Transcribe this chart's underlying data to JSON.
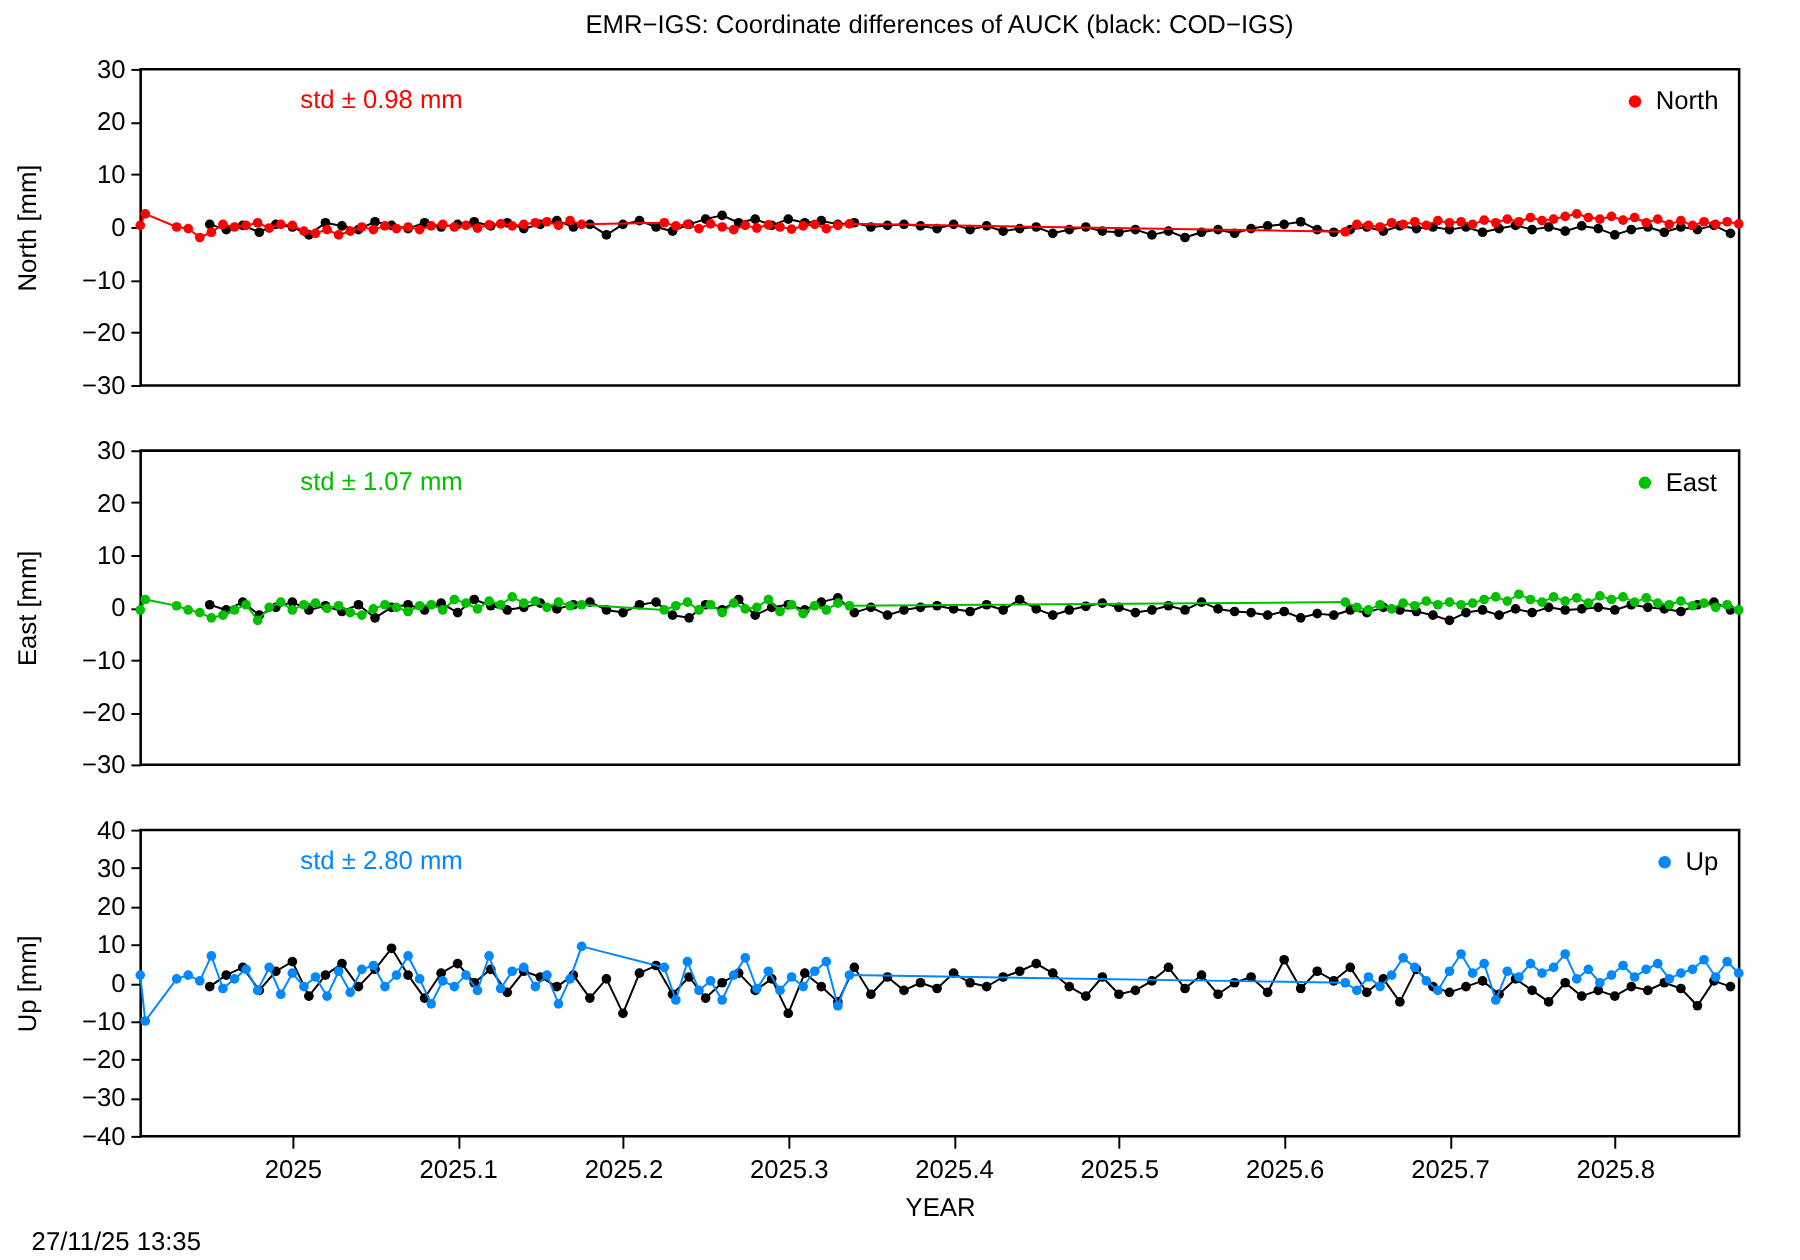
{
  "chart_data": [
    {
      "type": "line",
      "title": "EMR−IGS: Coordinate differences of AUCK (black: COD−IGS)",
      "ylabel": "North [mm]",
      "xlim": [
        2024.908,
        2025.875
      ],
      "ylim": [
        -30,
        30
      ],
      "yticks": [
        -30,
        -20,
        -10,
        0,
        10,
        20,
        30
      ],
      "tick_labels": "y",
      "legend": "top right",
      "marker": "circle",
      "line_style": "solid",
      "annotations": [
        "std ± 0.98 mm"
      ],
      "series": [
        {
          "color": "#000000",
          "x": [
            2024.95,
            2024.96,
            2024.97,
            2024.98,
            2024.99,
            2025.0,
            2025.01,
            2025.02,
            2025.03,
            2025.04,
            2025.05,
            2025.06,
            2025.07,
            2025.08,
            2025.09,
            2025.1,
            2025.11,
            2025.12,
            2025.13,
            2025.14,
            2025.15,
            2025.16,
            2025.17,
            2025.18,
            2025.19,
            2025.2,
            2025.21,
            2025.22,
            2025.23,
            2025.24,
            2025.25,
            2025.26,
            2025.27,
            2025.28,
            2025.29,
            2025.3,
            2025.31,
            2025.32,
            2025.33,
            2025.34,
            2025.35,
            2025.36,
            2025.37,
            2025.38,
            2025.39,
            2025.4,
            2025.41,
            2025.42,
            2025.43,
            2025.44,
            2025.45,
            2025.46,
            2025.47,
            2025.48,
            2025.49,
            2025.5,
            2025.51,
            2025.52,
            2025.53,
            2025.54,
            2025.55,
            2025.56,
            2025.57,
            2025.58,
            2025.59,
            2025.6,
            2025.61,
            2025.62,
            2025.63,
            2025.64,
            2025.65,
            2025.66,
            2025.67,
            2025.68,
            2025.69,
            2025.7,
            2025.71,
            2025.72,
            2025.73,
            2025.74,
            2025.75,
            2025.76,
            2025.77,
            2025.78,
            2025.79,
            2025.8,
            2025.81,
            2025.82,
            2025.83,
            2025.84,
            2025.85,
            2025.86,
            2025.87
          ],
          "values": [
            0.5,
            -0.5,
            0.3,
            -1.0,
            0.5,
            0.0,
            -1.5,
            0.8,
            0.2,
            -0.5,
            1.0,
            0.3,
            -0.3,
            0.8,
            0.0,
            0.5,
            1.0,
            0.2,
            0.8,
            -0.3,
            0.5,
            1.2,
            0.0,
            0.5,
            -1.5,
            0.5,
            1.2,
            0.0,
            -0.8,
            0.5,
            1.5,
            2.2,
            0.8,
            1.5,
            0.3,
            1.5,
            0.8,
            1.2,
            0.5,
            0.8,
            0.0,
            0.3,
            0.5,
            0.2,
            -0.3,
            0.5,
            -0.5,
            0.2,
            -0.8,
            -0.3,
            0.0,
            -1.2,
            -0.5,
            0.0,
            -0.8,
            -1.0,
            -0.5,
            -1.5,
            -0.8,
            -2.0,
            -1.0,
            -0.5,
            -1.2,
            -0.3,
            0.2,
            0.5,
            1.0,
            -0.5,
            -1.0,
            -0.5,
            0.0,
            -0.8,
            0.2,
            -0.3,
            0.0,
            -0.5,
            0.0,
            -1.0,
            -0.3,
            0.3,
            -0.5,
            0.0,
            -0.8,
            0.2,
            -0.3,
            -1.5,
            -0.5,
            0.0,
            -1.0,
            0.0,
            -0.5,
            0.3,
            -1.2
          ]
        },
        {
          "name": "North",
          "color": "#ff0000",
          "x": [
            2024.908,
            2024.911,
            2024.93,
            2024.937,
            2024.944,
            2024.951,
            2024.958,
            2024.965,
            2024.972,
            2024.979,
            2024.986,
            2024.993,
            2025.0,
            2025.007,
            2025.014,
            2025.021,
            2025.028,
            2025.035,
            2025.042,
            2025.049,
            2025.056,
            2025.063,
            2025.07,
            2025.077,
            2025.084,
            2025.091,
            2025.098,
            2025.105,
            2025.112,
            2025.119,
            2025.126,
            2025.133,
            2025.14,
            2025.147,
            2025.154,
            2025.161,
            2025.168,
            2025.175,
            2025.225,
            2025.232,
            2025.239,
            2025.246,
            2025.253,
            2025.26,
            2025.267,
            2025.274,
            2025.281,
            2025.288,
            2025.295,
            2025.302,
            2025.309,
            2025.316,
            2025.323,
            2025.33,
            2025.337,
            2025.637,
            2025.644,
            2025.651,
            2025.658,
            2025.665,
            2025.672,
            2025.679,
            2025.686,
            2025.693,
            2025.7,
            2025.707,
            2025.714,
            2025.721,
            2025.728,
            2025.735,
            2025.742,
            2025.749,
            2025.756,
            2025.763,
            2025.77,
            2025.777,
            2025.784,
            2025.791,
            2025.798,
            2025.805,
            2025.812,
            2025.819,
            2025.826,
            2025.833,
            2025.84,
            2025.847,
            2025.854,
            2025.861,
            2025.868,
            2025.875
          ],
          "values": [
            0.3,
            2.5,
            0.0,
            -0.3,
            -2.0,
            -1.0,
            0.5,
            0.0,
            0.3,
            0.8,
            -0.2,
            0.5,
            0.3,
            -0.8,
            -1.2,
            -0.5,
            -1.5,
            -0.8,
            0.0,
            -0.5,
            0.2,
            -0.3,
            0.0,
            -0.5,
            0.2,
            0.5,
            0.0,
            0.3,
            -0.2,
            0.4,
            0.6,
            0.2,
            0.5,
            0.8,
            1.0,
            0.3,
            1.2,
            0.5,
            0.8,
            0.2,
            0.5,
            -0.3,
            0.6,
            0.0,
            -0.5,
            0.3,
            -0.2,
            0.4,
            0.0,
            -0.4,
            0.2,
            0.5,
            -0.3,
            0.3,
            0.6,
            -0.9,
            0.5,
            0.3,
            0.0,
            0.8,
            0.5,
            1.0,
            0.3,
            1.2,
            0.8,
            1.0,
            0.5,
            1.3,
            0.8,
            1.5,
            1.0,
            1.8,
            1.2,
            1.5,
            2.0,
            2.5,
            1.8,
            1.5,
            2.0,
            1.3,
            1.8,
            0.8,
            1.5,
            0.5,
            1.2,
            0.3,
            1.0,
            0.5,
            1.0,
            0.6
          ]
        }
      ]
    },
    {
      "type": "line",
      "ylabel": "East [mm]",
      "xlim": [
        2024.908,
        2025.875
      ],
      "ylim": [
        -30,
        30
      ],
      "yticks": [
        -30,
        -20,
        -10,
        0,
        10,
        20,
        30
      ],
      "tick_labels": "y",
      "legend": "top right",
      "marker": "circle",
      "line_style": "solid",
      "annotations": [
        "std ± 1.07 mm"
      ],
      "series": [
        {
          "color": "#000000",
          "x": [
            2024.95,
            2024.96,
            2024.97,
            2024.98,
            2024.99,
            2025.0,
            2025.01,
            2025.02,
            2025.03,
            2025.04,
            2025.05,
            2025.06,
            2025.07,
            2025.08,
            2025.09,
            2025.1,
            2025.11,
            2025.12,
            2025.13,
            2025.14,
            2025.15,
            2025.16,
            2025.17,
            2025.18,
            2025.19,
            2025.2,
            2025.21,
            2025.22,
            2025.23,
            2025.24,
            2025.25,
            2025.26,
            2025.27,
            2025.28,
            2025.29,
            2025.3,
            2025.31,
            2025.32,
            2025.33,
            2025.34,
            2025.35,
            2025.36,
            2025.37,
            2025.38,
            2025.39,
            2025.4,
            2025.41,
            2025.42,
            2025.43,
            2025.44,
            2025.45,
            2025.46,
            2025.47,
            2025.48,
            2025.49,
            2025.5,
            2025.51,
            2025.52,
            2025.53,
            2025.54,
            2025.55,
            2025.56,
            2025.57,
            2025.58,
            2025.59,
            2025.6,
            2025.61,
            2025.62,
            2025.63,
            2025.64,
            2025.65,
            2025.66,
            2025.67,
            2025.68,
            2025.69,
            2025.7,
            2025.71,
            2025.72,
            2025.73,
            2025.74,
            2025.75,
            2025.76,
            2025.77,
            2025.78,
            2025.79,
            2025.8,
            2025.81,
            2025.82,
            2025.83,
            2025.84,
            2025.85,
            2025.86,
            2025.87
          ],
          "values": [
            0.5,
            -0.5,
            1.0,
            -1.5,
            0.0,
            1.0,
            -0.5,
            0.3,
            -0.8,
            0.5,
            -2.0,
            0.0,
            0.5,
            -0.5,
            0.8,
            -1.0,
            1.5,
            0.3,
            -0.5,
            0.0,
            0.8,
            -0.3,
            0.5,
            1.0,
            -0.5,
            -1.0,
            0.5,
            1.0,
            -1.5,
            -2.0,
            0.5,
            -0.5,
            1.5,
            -1.5,
            0.0,
            0.5,
            -0.5,
            1.0,
            1.8,
            -1.0,
            0.0,
            -1.5,
            -0.5,
            0.0,
            0.3,
            -0.3,
            -0.8,
            0.5,
            -0.5,
            1.5,
            -0.3,
            -1.5,
            -0.5,
            0.2,
            0.8,
            0.0,
            -1.0,
            -0.5,
            0.3,
            -0.5,
            1.0,
            -0.3,
            -0.8,
            -1.0,
            -1.5,
            -0.8,
            -2.0,
            -1.2,
            -1.5,
            -0.5,
            -1.0,
            0.0,
            -0.5,
            -0.8,
            -1.5,
            -2.5,
            -1.0,
            -0.5,
            -1.5,
            -0.3,
            -1.0,
            0.0,
            -0.5,
            -0.3,
            0.0,
            -0.5,
            0.5,
            0.0,
            -0.3,
            -0.8,
            0.5,
            1.0,
            -0.5
          ]
        },
        {
          "name": "East",
          "color": "#00c000",
          "x": [
            2024.908,
            2024.911,
            2024.93,
            2024.937,
            2024.944,
            2024.951,
            2024.958,
            2024.965,
            2024.972,
            2024.979,
            2024.986,
            2024.993,
            2025.0,
            2025.007,
            2025.014,
            2025.021,
            2025.028,
            2025.035,
            2025.042,
            2025.049,
            2025.056,
            2025.063,
            2025.07,
            2025.077,
            2025.084,
            2025.091,
            2025.098,
            2025.105,
            2025.112,
            2025.119,
            2025.126,
            2025.133,
            2025.14,
            2025.147,
            2025.154,
            2025.161,
            2025.168,
            2025.175,
            2025.225,
            2025.232,
            2025.239,
            2025.246,
            2025.253,
            2025.26,
            2025.267,
            2025.274,
            2025.281,
            2025.288,
            2025.295,
            2025.302,
            2025.309,
            2025.316,
            2025.323,
            2025.33,
            2025.337,
            2025.637,
            2025.644,
            2025.651,
            2025.658,
            2025.665,
            2025.672,
            2025.679,
            2025.686,
            2025.693,
            2025.7,
            2025.707,
            2025.714,
            2025.721,
            2025.728,
            2025.735,
            2025.742,
            2025.749,
            2025.756,
            2025.763,
            2025.77,
            2025.777,
            2025.784,
            2025.791,
            2025.798,
            2025.805,
            2025.812,
            2025.819,
            2025.826,
            2025.833,
            2025.84,
            2025.847,
            2025.854,
            2025.861,
            2025.868,
            2025.875
          ],
          "values": [
            -0.5,
            1.5,
            0.3,
            -0.5,
            -1.0,
            -2.0,
            -1.5,
            -0.5,
            0.5,
            -2.5,
            0.0,
            1.0,
            -0.5,
            0.5,
            0.8,
            -0.2,
            0.3,
            -1.0,
            -1.5,
            -0.3,
            0.5,
            0.0,
            -0.8,
            0.3,
            0.5,
            -0.5,
            1.5,
            0.8,
            -0.3,
            1.2,
            0.5,
            2.0,
            0.8,
            1.2,
            0.0,
            1.0,
            0.3,
            0.5,
            -0.5,
            0.3,
            1.0,
            -0.5,
            0.5,
            -1.0,
            0.8,
            -0.3,
            0.0,
            1.5,
            -0.8,
            0.5,
            -1.2,
            0.3,
            -0.5,
            0.8,
            0.3,
            1.0,
            0.0,
            -0.5,
            0.5,
            -0.3,
            0.8,
            0.3,
            1.2,
            0.5,
            1.0,
            0.5,
            0.8,
            1.5,
            2.0,
            1.2,
            2.5,
            1.5,
            1.0,
            2.0,
            1.2,
            1.8,
            0.8,
            2.2,
            1.5,
            2.0,
            1.0,
            1.8,
            0.8,
            0.5,
            1.2,
            0.3,
            0.8,
            0.0,
            0.5,
            -0.5
          ]
        }
      ]
    },
    {
      "type": "line",
      "xlabel": "YEAR",
      "ylabel": "Up [mm]",
      "xlim": [
        2024.908,
        2025.875
      ],
      "xticks": [
        2025,
        2025.1,
        2025.2,
        2025.3,
        2025.4,
        2025.5,
        2025.6,
        2025.7,
        2025.8
      ],
      "ylim": [
        -40,
        40
      ],
      "yticks": [
        -40,
        -30,
        -20,
        -10,
        0,
        10,
        20,
        30,
        40
      ],
      "legend": "top right",
      "marker": "circle",
      "line_style": "solid",
      "annotations": [
        "std ± 2.80 mm",
        "27/11/25 13:35"
      ],
      "series": [
        {
          "color": "#000000",
          "x": [
            2024.95,
            2024.96,
            2024.97,
            2024.98,
            2024.99,
            2025.0,
            2025.01,
            2025.02,
            2025.03,
            2025.04,
            2025.05,
            2025.06,
            2025.07,
            2025.08,
            2025.09,
            2025.1,
            2025.11,
            2025.12,
            2025.13,
            2025.14,
            2025.15,
            2025.16,
            2025.17,
            2025.18,
            2025.19,
            2025.2,
            2025.21,
            2025.22,
            2025.23,
            2025.24,
            2025.25,
            2025.26,
            2025.27,
            2025.28,
            2025.29,
            2025.3,
            2025.31,
            2025.32,
            2025.33,
            2025.34,
            2025.35,
            2025.36,
            2025.37,
            2025.38,
            2025.39,
            2025.4,
            2025.41,
            2025.42,
            2025.43,
            2025.44,
            2025.45,
            2025.46,
            2025.47,
            2025.48,
            2025.49,
            2025.5,
            2025.51,
            2025.52,
            2025.53,
            2025.54,
            2025.55,
            2025.56,
            2025.57,
            2025.58,
            2025.59,
            2025.6,
            2025.61,
            2025.62,
            2025.63,
            2025.64,
            2025.65,
            2025.66,
            2025.67,
            2025.68,
            2025.69,
            2025.7,
            2025.71,
            2025.72,
            2025.73,
            2025.74,
            2025.75,
            2025.76,
            2025.77,
            2025.78,
            2025.79,
            2025.8,
            2025.81,
            2025.82,
            2025.83,
            2025.84,
            2025.85,
            2025.86,
            2025.87
          ],
          "values": [
            -1.0,
            2.0,
            4.0,
            -2.0,
            3.0,
            5.5,
            -3.5,
            2.0,
            5.0,
            -1.0,
            3.5,
            9.0,
            2.0,
            -4.0,
            2.5,
            5.0,
            0.0,
            3.5,
            -2.5,
            3.0,
            1.5,
            -1.0,
            2.0,
            -4.0,
            1.0,
            -8.0,
            2.5,
            4.5,
            -3.0,
            1.5,
            -4.0,
            0.0,
            2.5,
            -2.0,
            1.0,
            -8.0,
            2.5,
            -1.0,
            -5.0,
            4.0,
            -3.0,
            1.5,
            -2.0,
            0.0,
            -1.5,
            2.5,
            0.0,
            -1.0,
            1.5,
            3.0,
            5.0,
            2.5,
            -1.0,
            -3.5,
            1.5,
            -3.0,
            -2.0,
            0.5,
            4.0,
            -1.5,
            2.0,
            -3.0,
            0.0,
            1.5,
            -2.5,
            6.0,
            -1.5,
            3.0,
            0.5,
            4.0,
            -2.5,
            1.0,
            -5.0,
            3.5,
            -1.0,
            -2.5,
            -1.0,
            0.5,
            -3.0,
            1.0,
            -2.0,
            -5.0,
            0.0,
            -3.5,
            -2.0,
            -3.5,
            -1.0,
            -2.0,
            0.0,
            -1.5,
            -6.0,
            0.5,
            -1.0
          ]
        },
        {
          "name": "Up",
          "color": "#0088ff",
          "x": [
            2024.908,
            2024.911,
            2024.93,
            2024.937,
            2024.944,
            2024.951,
            2024.958,
            2024.965,
            2024.972,
            2024.979,
            2024.986,
            2024.993,
            2025.0,
            2025.007,
            2025.014,
            2025.021,
            2025.028,
            2025.035,
            2025.042,
            2025.049,
            2025.056,
            2025.063,
            2025.07,
            2025.077,
            2025.084,
            2025.091,
            2025.098,
            2025.105,
            2025.112,
            2025.119,
            2025.126,
            2025.133,
            2025.14,
            2025.147,
            2025.154,
            2025.161,
            2025.168,
            2025.175,
            2025.225,
            2025.232,
            2025.239,
            2025.246,
            2025.253,
            2025.26,
            2025.267,
            2025.274,
            2025.281,
            2025.288,
            2025.295,
            2025.302,
            2025.309,
            2025.316,
            2025.323,
            2025.33,
            2025.337,
            2025.637,
            2025.644,
            2025.651,
            2025.658,
            2025.665,
            2025.672,
            2025.679,
            2025.686,
            2025.693,
            2025.7,
            2025.707,
            2025.714,
            2025.721,
            2025.728,
            2025.735,
            2025.742,
            2025.749,
            2025.756,
            2025.763,
            2025.77,
            2025.777,
            2025.784,
            2025.791,
            2025.798,
            2025.805,
            2025.812,
            2025.819,
            2025.826,
            2025.833,
            2025.84,
            2025.847,
            2025.854,
            2025.861,
            2025.868,
            2025.875
          ],
          "values": [
            2.0,
            -10.0,
            1.0,
            2.0,
            0.5,
            7.0,
            -1.5,
            1.0,
            3.5,
            -2.0,
            4.0,
            -3.0,
            2.5,
            -1.0,
            1.5,
            -3.5,
            3.0,
            -2.5,
            3.5,
            4.5,
            -1.0,
            2.0,
            7.0,
            1.0,
            -5.5,
            0.5,
            -1.0,
            2.0,
            -2.0,
            7.0,
            -1.5,
            3.0,
            4.0,
            -1.0,
            2.0,
            -5.5,
            1.0,
            9.5,
            4.0,
            -4.5,
            5.5,
            -2.0,
            0.5,
            -4.5,
            2.0,
            6.5,
            -1.5,
            3.0,
            -2.0,
            1.5,
            -1.0,
            3.0,
            5.5,
            -6.0,
            2.0,
            0.0,
            -2.0,
            1.5,
            -1.0,
            2.0,
            6.5,
            4.0,
            0.5,
            -2.0,
            3.0,
            7.5,
            2.5,
            5.0,
            -4.5,
            3.0,
            1.5,
            5.0,
            2.5,
            4.0,
            7.5,
            1.0,
            3.5,
            0.0,
            2.0,
            4.5,
            1.5,
            3.5,
            5.0,
            1.0,
            2.5,
            3.5,
            6.0,
            1.5,
            5.5,
            2.5
          ]
        }
      ]
    }
  ]
}
